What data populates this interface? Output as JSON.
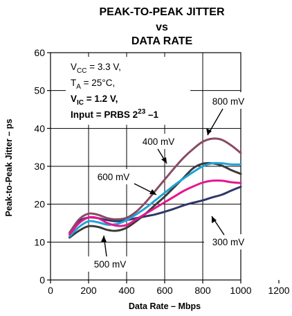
{
  "chart_data": {
    "type": "line",
    "title_lines": [
      "PEAK-TO-PEAK JITTER",
      "vs",
      "DATA RATE"
    ],
    "xlabel": "Data Rate – Mbps",
    "ylabel": "Peak-to-Peak Jitter – ps",
    "xlim": [
      0,
      1200
    ],
    "ylim": [
      0,
      60
    ],
    "xticks": [
      0,
      200,
      400,
      600,
      800,
      1000,
      1200
    ],
    "yticks": [
      0,
      10,
      20,
      30,
      40,
      50,
      60
    ],
    "grid": true,
    "conditions": {
      "vcc": {
        "pre": "V",
        "sub": "CC",
        "post": " = 3.3 V,"
      },
      "ta": {
        "pre": "T",
        "sub": "A",
        "post": " = 25°C,"
      },
      "vic": {
        "pre": "V",
        "sub": "IC",
        "post": " = 1.2 V,"
      },
      "input": {
        "pre": "Input = PRBS 2",
        "sup": "23",
        "post": " –1"
      }
    },
    "series": [
      {
        "name": "300 mV",
        "color": "#2e3768",
        "x": [
          100,
          150,
          200,
          250,
          300,
          350,
          400,
          450,
          500,
          550,
          600,
          650,
          700,
          750,
          800,
          850,
          900,
          950,
          1000
        ],
        "y": [
          12.5,
          15.5,
          16.5,
          16.3,
          15.8,
          15.5,
          15.8,
          16.3,
          16.8,
          17.3,
          18,
          18.8,
          19.7,
          20.4,
          21,
          21.8,
          22.5,
          23.6,
          24.6
        ]
      },
      {
        "name": "500 mV",
        "color": "#3a3a3a",
        "x": [
          100,
          150,
          200,
          250,
          300,
          350,
          400,
          450,
          500,
          550,
          600,
          650,
          700,
          750,
          800,
          850,
          900,
          950,
          1000
        ],
        "y": [
          11.2,
          13,
          14.2,
          14,
          13.2,
          13,
          13.8,
          15.5,
          17.5,
          19.8,
          22,
          24.5,
          27,
          29.5,
          30.7,
          30.8,
          30.2,
          29,
          28
        ]
      },
      {
        "name": "600 mV",
        "color": "#1fa3d9",
        "x": [
          100,
          150,
          200,
          250,
          300,
          350,
          400,
          450,
          500,
          550,
          600,
          650,
          700,
          750,
          800,
          850,
          900,
          950,
          1000
        ],
        "y": [
          11.5,
          14,
          15.5,
          15.2,
          14.6,
          14.8,
          15.8,
          17.3,
          19,
          21,
          23,
          25,
          26.8,
          28.5,
          30,
          30.8,
          30.8,
          30.5,
          30.5
        ]
      },
      {
        "name": "800 mV",
        "color": "#8a4a66",
        "x": [
          100,
          150,
          200,
          250,
          300,
          350,
          400,
          450,
          500,
          550,
          600,
          650,
          700,
          750,
          800,
          850,
          900,
          950,
          1000
        ],
        "y": [
          12.5,
          16,
          17.5,
          17.2,
          16.3,
          16,
          16.4,
          18,
          20.5,
          23.5,
          26.5,
          29.5,
          32.3,
          34.6,
          36.5,
          37.3,
          37,
          35.5,
          33.5
        ]
      },
      {
        "name": "400 mV",
        "color": "#e5168f",
        "x": [
          100,
          150,
          200,
          250,
          300,
          350,
          400,
          450,
          500,
          550,
          600,
          650,
          700,
          750,
          800,
          850,
          900,
          950,
          1000
        ],
        "y": [
          12,
          15,
          16.5,
          16.3,
          15,
          14.3,
          14.5,
          16,
          17.5,
          19,
          20.5,
          22,
          23.5,
          24.7,
          25.7,
          26.2,
          26.2,
          25.8,
          25.6
        ]
      }
    ],
    "annotations": {
      "a800": "800 mV",
      "a400": "400 mV",
      "a600": "600 mV",
      "a300": "300 mV",
      "a500": "500 mV"
    }
  }
}
